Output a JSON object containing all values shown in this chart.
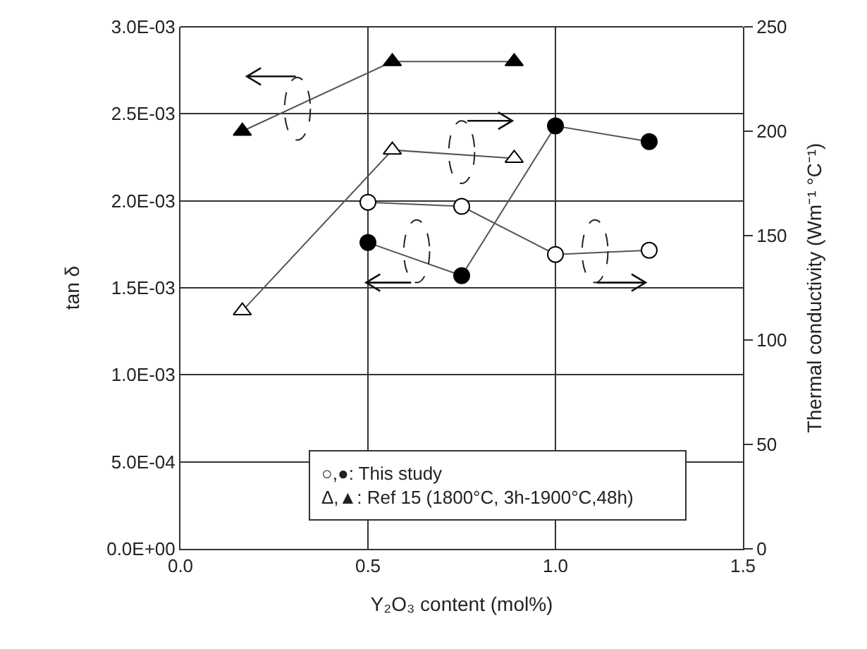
{
  "chart_data": {
    "type": "line",
    "xlabel": "Y₂O₃ content (mol%)",
    "ylabel": "tan δ",
    "y2label": "Thermal conductivity (Wm⁻¹ °C⁻¹)",
    "series": [
      {
        "color": "#000000",
        "marker": "circle",
        "x": [
          0.5,
          0.75,
          1.0,
          1.25
        ],
        "values": [
          0.00176,
          0.00157,
          0.00243,
          0.00234
        ]
      },
      {
        "color": "#ffffff",
        "marker": "circle",
        "axis": "y2",
        "x": [
          0.5,
          0.75,
          1.0,
          1.25
        ],
        "values": [
          166,
          164,
          141,
          143
        ]
      },
      {
        "color": "#000000",
        "marker": "triangle",
        "x": [
          0.165,
          0.565,
          0.89
        ],
        "values": [
          0.0024,
          0.0028,
          0.0028
        ]
      },
      {
        "color": "#ffffff",
        "marker": "triangle",
        "axis": "y2",
        "x": [
          0.165,
          0.565,
          0.89
        ],
        "values": [
          114,
          191,
          187
        ]
      }
    ],
    "xlim": [
      0,
      1.5
    ],
    "xticks": [
      {
        "value": 0,
        "label": "0.0"
      },
      0.5,
      {
        "value": 1,
        "label": "1.0"
      },
      1.5
    ],
    "ylim": [
      0,
      0.003
    ],
    "yticks": [
      {
        "value": 0,
        "label": "0.0E+00"
      },
      {
        "value": 0.0005,
        "label": "5.0E-04"
      },
      {
        "value": 0.001,
        "label": "1.0E-03"
      },
      {
        "value": 0.0015,
        "label": "1.5E-03"
      },
      {
        "value": 0.002,
        "label": "2.0E-03"
      },
      {
        "value": 0.0025,
        "label": "2.5E-03"
      },
      {
        "value": 0.003,
        "label": "3.0E-03"
      }
    ],
    "y2lim": [
      0,
      250
    ],
    "y2ticks": [
      0,
      50,
      100,
      150,
      200,
      250
    ],
    "grid": true,
    "line_style": "solid",
    "annotations": [
      "○,●: This study",
      "Δ,▲: Ref 15 (1800°C, 3h-1900°C,48h)"
    ]
  }
}
